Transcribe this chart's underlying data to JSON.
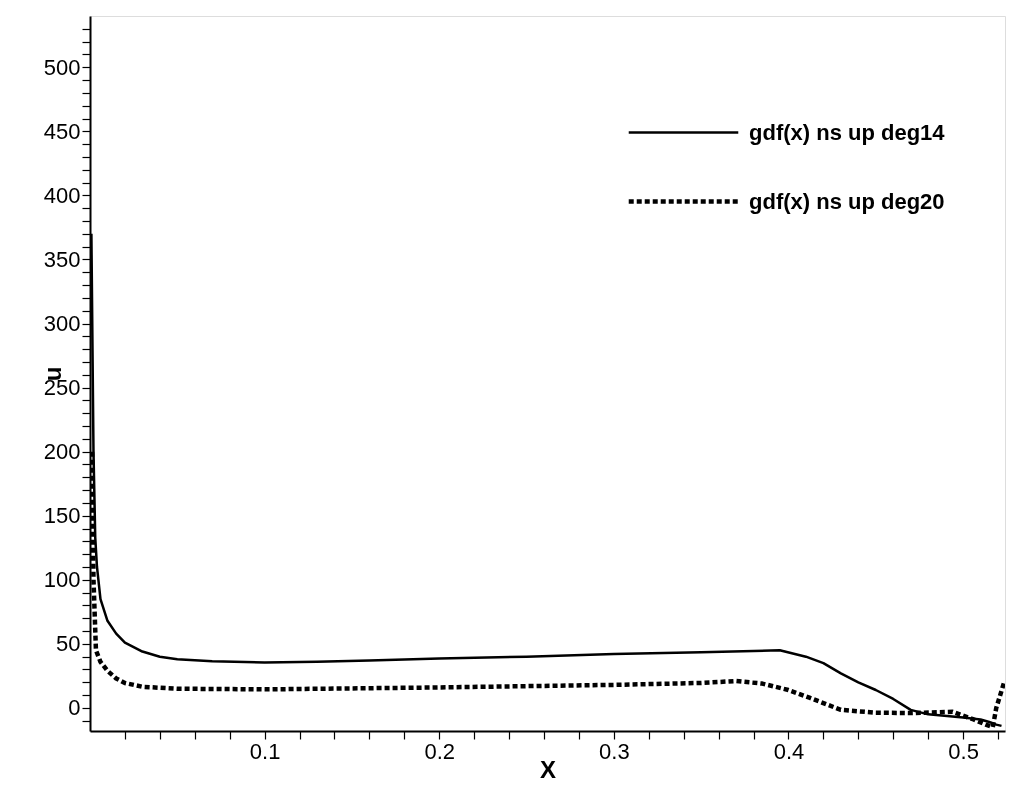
{
  "chart_data": {
    "type": "line",
    "xlabel": "X",
    "ylabel": "u",
    "xlim": [
      0,
      0.524
    ],
    "ylim": [
      -18,
      540
    ],
    "xticks": [
      {
        "value": 0.02,
        "label": null
      },
      {
        "value": 0.04,
        "label": null
      },
      {
        "value": 0.06,
        "label": null
      },
      {
        "value": 0.08,
        "label": null
      },
      0.1,
      {
        "value": 0.12,
        "label": null
      },
      {
        "value": 0.14,
        "label": null
      },
      {
        "value": 0.16,
        "label": null
      },
      {
        "value": 0.18,
        "label": null
      },
      0.2,
      {
        "value": 0.22,
        "label": null
      },
      {
        "value": 0.24,
        "label": null
      },
      {
        "value": 0.26,
        "label": null
      },
      {
        "value": 0.28,
        "label": null
      },
      0.3,
      {
        "value": 0.32,
        "label": null
      },
      {
        "value": 0.34,
        "label": null
      },
      {
        "value": 0.36,
        "label": null
      },
      {
        "value": 0.38,
        "label": null
      },
      0.4,
      {
        "value": 0.42,
        "label": null
      },
      {
        "value": 0.44,
        "label": null
      },
      {
        "value": 0.46,
        "label": null
      },
      {
        "value": 0.48,
        "label": null
      },
      0.5,
      {
        "value": 0.52,
        "label": null
      }
    ],
    "yticks": [
      {
        "value": -10,
        "label": null
      },
      0,
      {
        "value": 10,
        "label": null
      },
      {
        "value": 20,
        "label": null
      },
      {
        "value": 30,
        "label": null
      },
      {
        "value": 40,
        "label": null
      },
      50,
      {
        "value": 60,
        "label": null
      },
      {
        "value": 70,
        "label": null
      },
      {
        "value": 80,
        "label": null
      },
      {
        "value": 90,
        "label": null
      },
      100,
      {
        "value": 110,
        "label": null
      },
      {
        "value": 120,
        "label": null
      },
      {
        "value": 130,
        "label": null
      },
      {
        "value": 140,
        "label": null
      },
      150,
      {
        "value": 160,
        "label": null
      },
      {
        "value": 170,
        "label": null
      },
      {
        "value": 180,
        "label": null
      },
      {
        "value": 190,
        "label": null
      },
      200,
      {
        "value": 210,
        "label": null
      },
      {
        "value": 220,
        "label": null
      },
      {
        "value": 230,
        "label": null
      },
      {
        "value": 240,
        "label": null
      },
      250,
      {
        "value": 260,
        "label": null
      },
      {
        "value": 270,
        "label": null
      },
      {
        "value": 280,
        "label": null
      },
      {
        "value": 290,
        "label": null
      },
      300,
      {
        "value": 310,
        "label": null
      },
      {
        "value": 320,
        "label": null
      },
      {
        "value": 330,
        "label": null
      },
      {
        "value": 340,
        "label": null
      },
      350,
      {
        "value": 360,
        "label": null
      },
      {
        "value": 370,
        "label": null
      },
      {
        "value": 380,
        "label": null
      },
      {
        "value": 390,
        "label": null
      },
      400,
      {
        "value": 410,
        "label": null
      },
      {
        "value": 420,
        "label": null
      },
      {
        "value": 430,
        "label": null
      },
      {
        "value": 440,
        "label": null
      },
      450,
      {
        "value": 460,
        "label": null
      },
      {
        "value": 470,
        "label": null
      },
      {
        "value": 480,
        "label": null
      },
      {
        "value": 490,
        "label": null
      },
      500,
      {
        "value": 510,
        "label": null
      },
      {
        "value": 520,
        "label": null
      },
      {
        "value": 530,
        "label": null
      }
    ],
    "grid": false,
    "legend": "top right",
    "marker": "none",
    "series": [
      {
        "name": "gdf(x) ns up deg14",
        "color": "#000000",
        "line_style": "solid",
        "x": [
          0.0008,
          0.002,
          0.003,
          0.004,
          0.006,
          0.01,
          0.015,
          0.02,
          0.03,
          0.04,
          0.05,
          0.07,
          0.1,
          0.13,
          0.16,
          0.2,
          0.25,
          0.3,
          0.35,
          0.38,
          0.395,
          0.41,
          0.42,
          0.43,
          0.44,
          0.45,
          0.46,
          0.47,
          0.48,
          0.5,
          0.51,
          0.515,
          0.519,
          0.522
        ],
        "values": [
          370,
          200,
          133,
          110,
          85,
          68,
          58,
          51,
          44,
          40,
          38,
          36.5,
          35.5,
          36,
          37,
          38.5,
          40,
          42,
          43.5,
          44.5,
          45,
          40,
          35,
          27,
          20,
          14,
          7,
          -1.5,
          -5,
          -7.5,
          -9,
          -11,
          -13,
          -14
        ]
      },
      {
        "name": "gdf(x) ns up deg20",
        "color": "#000000",
        "line_style": "dotted",
        "x": [
          0.0012,
          0.002,
          0.0034,
          0.006,
          0.01,
          0.015,
          0.02,
          0.03,
          0.05,
          0.1,
          0.2,
          0.3,
          0.35,
          0.37,
          0.385,
          0.4,
          0.412,
          0.43,
          0.45,
          0.47,
          0.494,
          0.506,
          0.513,
          0.517,
          0.519,
          0.5235
        ],
        "values": [
          200,
          100,
          45,
          36,
          29,
          23,
          19.5,
          16.5,
          15,
          14.5,
          16,
          18,
          19.5,
          21,
          19,
          14,
          8,
          -1.5,
          -3.7,
          -4,
          -3,
          -9,
          -13,
          -15,
          0,
          20
        ]
      }
    ]
  }
}
